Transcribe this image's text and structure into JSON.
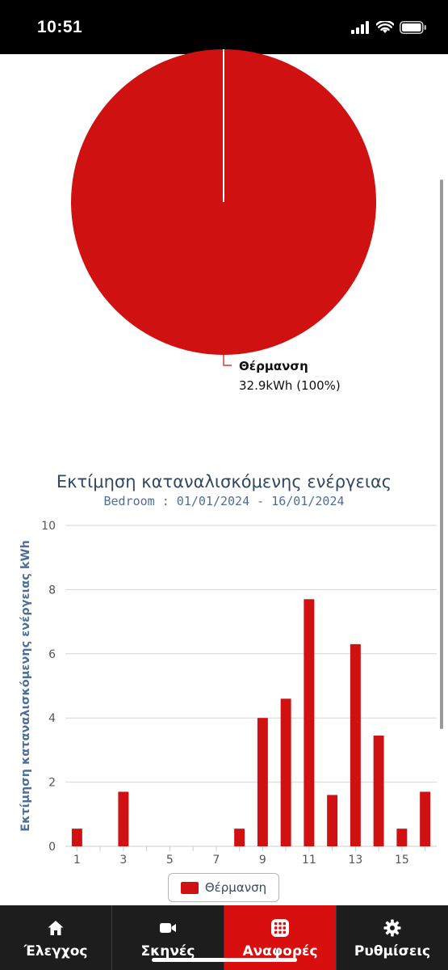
{
  "status_bar": {
    "time": "10:51"
  },
  "pie": {
    "slice_name": "Θέρμανση",
    "slice_value": "32.9kWh (100%)",
    "color": "#d01111"
  },
  "chart_data": {
    "type": "bar",
    "title": "Εκτίμηση καταναλισκόμενης ενέργειας",
    "subtitle": "Bedroom : 01/01/2024 - 16/01/2024",
    "ylabel": "Εκτίμηση καταναλισκόμενης ενέργειας kWh",
    "xlabel": "",
    "x": [
      1,
      2,
      3,
      4,
      5,
      6,
      7,
      8,
      9,
      10,
      11,
      12,
      13,
      14,
      15,
      16
    ],
    "x_tick_labels": [
      "1",
      "3",
      "5",
      "7",
      "9",
      "11",
      "13",
      "15"
    ],
    "y_tick_labels": [
      "0",
      "2",
      "4",
      "6",
      "8",
      "10"
    ],
    "ylim": [
      0,
      10
    ],
    "grid": true,
    "legend_position": "bottom-center",
    "series": [
      {
        "name": "Θέρμανση",
        "color": "#d01111",
        "values": [
          0.55,
          0,
          1.7,
          0,
          0,
          0,
          0,
          0.55,
          4.0,
          4.6,
          7.7,
          1.6,
          6.3,
          3.45,
          0.55,
          1.7
        ]
      }
    ]
  },
  "tabs": [
    {
      "label": "Έλεγχος",
      "icon": "home-icon",
      "active": false
    },
    {
      "label": "Σκηνές",
      "icon": "video-camera-icon",
      "active": false
    },
    {
      "label": "Αναφορές",
      "icon": "grid-icon",
      "active": true
    },
    {
      "label": "Ρυθμίσεις",
      "icon": "gear-icon",
      "active": false
    }
  ]
}
